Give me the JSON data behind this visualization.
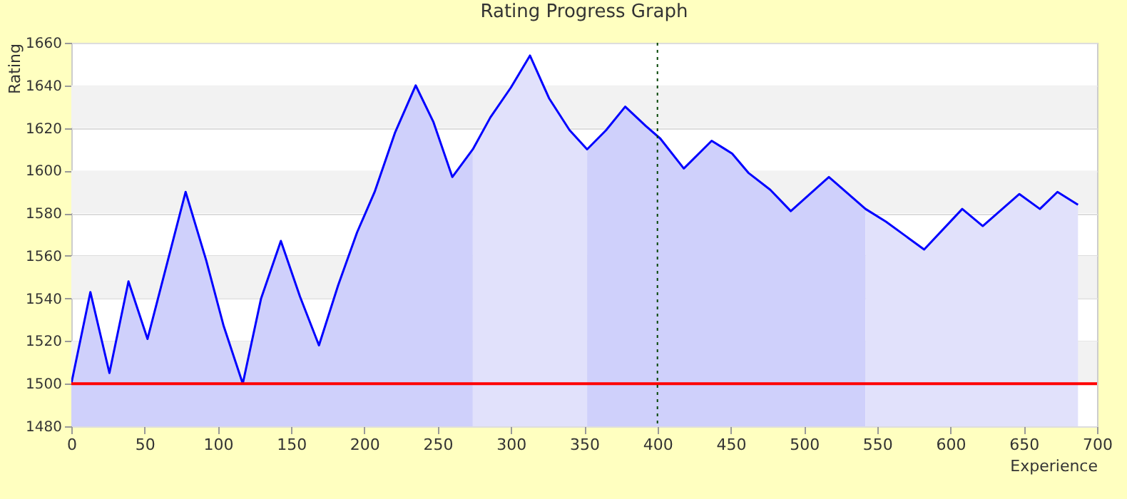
{
  "chart_data": {
    "type": "area",
    "title": "Rating Progress Graph",
    "xlabel": "Experience",
    "ylabel": "Rating",
    "xlim": [
      0,
      700
    ],
    "xticks": [
      0,
      50,
      100,
      150,
      200,
      250,
      300,
      350,
      400,
      450,
      500,
      550,
      600,
      650,
      700
    ],
    "ylim": [
      1480,
      1660
    ],
    "yticks": [
      1480,
      1500,
      1520,
      1540,
      1560,
      1580,
      1600,
      1620,
      1640,
      1660
    ],
    "grid": "y",
    "bands": [
      {
        "axis": "y",
        "from": 1500,
        "to": 1520,
        "color": "#f2f2f2"
      },
      {
        "axis": "y",
        "from": 1540,
        "to": 1560,
        "color": "#f2f2f2"
      },
      {
        "axis": "y",
        "from": 1580,
        "to": 1600,
        "color": "#f2f2f2"
      },
      {
        "axis": "y",
        "from": 1620,
        "to": 1640,
        "color": "#f2f2f2"
      }
    ],
    "ref_lines": [
      {
        "axis": "y",
        "value": 1500,
        "color": "#ff0000",
        "line_style": "solid"
      },
      {
        "axis": "x",
        "value": 400,
        "color": "#004400",
        "line_style": "dotted"
      }
    ],
    "series": [
      {
        "type": "area",
        "color": "#cfd0fb",
        "x": [
          0,
          13,
          26,
          39,
          52,
          78,
          92,
          104,
          117,
          129.5,
          143,
          156,
          169,
          182,
          195,
          207,
          221,
          235,
          247,
          260,
          274
        ],
        "values": [
          1500,
          1543,
          1505,
          1548,
          1521,
          1590,
          1558,
          1527,
          1500,
          1540,
          1567,
          1541,
          1518,
          1546,
          1571,
          1590,
          1618,
          1640,
          1623,
          1597,
          1610
        ]
      },
      {
        "type": "area",
        "color": "#e1e1fb",
        "x": [
          274,
          286,
          300,
          313,
          326,
          340,
          352
        ],
        "values": [
          1610,
          1625,
          1639,
          1654,
          1634,
          1619,
          1610
        ]
      },
      {
        "type": "area",
        "color": "#cfd0fb",
        "x": [
          352,
          365,
          378,
          392,
          402,
          418,
          437,
          451,
          462,
          477,
          491,
          517,
          542
        ],
        "values": [
          1610,
          1619,
          1630,
          1621,
          1615,
          1601,
          1614,
          1608,
          1599,
          1591,
          1581,
          1597,
          1582
        ]
      },
      {
        "type": "area",
        "color": "#e1e1fb",
        "x": [
          542,
          556,
          582,
          608,
          622,
          647,
          661,
          673,
          687
        ],
        "values": [
          1582,
          1576,
          1563,
          1582,
          1574,
          1589,
          1582,
          1590,
          1584
        ]
      },
      {
        "type": "line",
        "color": "#0000ff",
        "x": [
          0,
          13,
          26,
          39,
          52,
          78,
          92,
          104,
          117,
          129.5,
          143,
          156,
          169,
          182,
          195,
          207,
          221,
          235,
          247,
          260,
          274,
          286,
          300,
          313,
          326,
          340,
          352,
          365,
          378,
          392,
          402,
          418,
          437,
          451,
          462,
          477,
          491,
          517,
          542,
          556,
          582,
          608,
          622,
          647,
          661,
          673,
          687
        ],
        "values": [
          1500,
          1543,
          1505,
          1548,
          1521,
          1590,
          1558,
          1527,
          1500,
          1540,
          1567,
          1541,
          1518,
          1546,
          1571,
          1590,
          1618,
          1640,
          1623,
          1597,
          1610,
          1625,
          1639,
          1654,
          1634,
          1619,
          1610,
          1619,
          1630,
          1621,
          1615,
          1601,
          1614,
          1608,
          1599,
          1591,
          1581,
          1597,
          1582,
          1576,
          1563,
          1582,
          1574,
          1589,
          1582,
          1590,
          1584
        ]
      }
    ]
  }
}
